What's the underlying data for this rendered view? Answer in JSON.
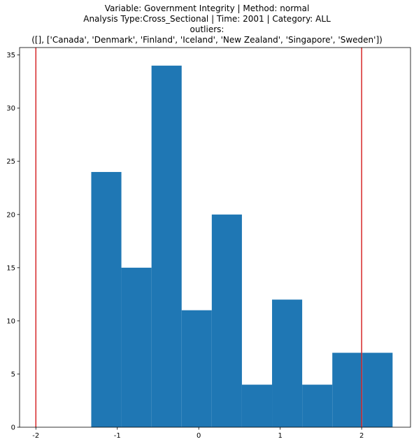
{
  "chart_data": {
    "type": "bar",
    "title_lines": [
      "Variable: Government Integrity | Method: normal",
      "Analysis Type:Cross_Sectional | Time: 2001 | Category: ALL",
      "outliers:",
      "([], ['Canada', 'Denmark', 'Finland', 'Iceland', 'New Zealand', 'Singapore', 'Sweden'])"
    ],
    "bins": [
      {
        "x0": -1.32,
        "x1": -0.95,
        "count": 24
      },
      {
        "x0": -0.95,
        "x1": -0.58,
        "count": 15
      },
      {
        "x0": -0.58,
        "x1": -0.21,
        "count": 34
      },
      {
        "x0": -0.21,
        "x1": 0.16,
        "count": 11
      },
      {
        "x0": 0.16,
        "x1": 0.53,
        "count": 20
      },
      {
        "x0": 0.53,
        "x1": 0.9,
        "count": 4
      },
      {
        "x0": 0.9,
        "x1": 1.27,
        "count": 12
      },
      {
        "x0": 1.27,
        "x1": 1.64,
        "count": 4
      },
      {
        "x0": 1.64,
        "x1": 2.01,
        "count": 7
      },
      {
        "x0": 2.01,
        "x1": 2.38,
        "count": 7
      }
    ],
    "vlines": [
      -2,
      2
    ],
    "bar_color": "#1f77b4",
    "vline_color": "#d62728",
    "xlim": [
      -2.2,
      2.6
    ],
    "ylim": [
      0,
      35.7
    ],
    "xticks": [
      "-2",
      "-1",
      "0",
      "1",
      "2"
    ],
    "xtick_values": [
      -2,
      -1,
      0,
      1,
      2
    ],
    "yticks": [
      "0",
      "5",
      "10",
      "15",
      "20",
      "25",
      "30",
      "35"
    ],
    "ytick_values": [
      0,
      5,
      10,
      15,
      20,
      25,
      30,
      35
    ],
    "grid": false
  }
}
